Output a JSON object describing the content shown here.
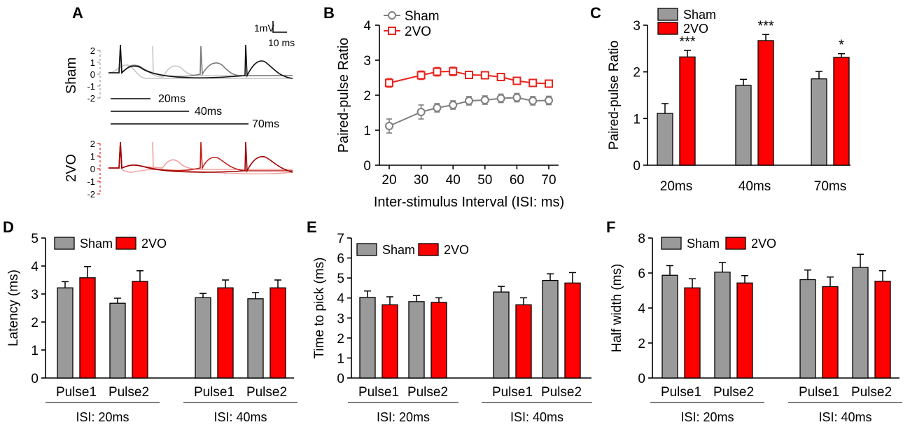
{
  "colors": {
    "sham": "#9a9a9a",
    "vo": "#ff0000",
    "line_sham": "#7f7f7f",
    "line_vo": "#e8231e",
    "trace_light": "#c6c6c6",
    "trace_mid": "#8a8a8a",
    "trace_dark": "#111111",
    "vo_light": "#f0a0a0",
    "vo_dark": "#a00000"
  },
  "panelA": {
    "label": "A",
    "sham_label": "Sham",
    "vo_label": "2VO",
    "scale_y": "1mV",
    "scale_x": "10 ms",
    "sham_ticks": [
      "2",
      "1",
      "0",
      "-1",
      "-2"
    ],
    "vo_ticks": [
      "2",
      "1",
      "0",
      "-1",
      "-2"
    ],
    "isi_labels": [
      "20ms",
      "40ms",
      "70ms"
    ]
  },
  "chart_data": [
    {
      "panel": "B",
      "type": "line",
      "title": "",
      "xlabel": "Inter-stimulus Interval (ISI: ms)",
      "ylabel": "Paired-pulse Ratio",
      "x": [
        20,
        30,
        35,
        40,
        45,
        50,
        55,
        60,
        65,
        70
      ],
      "xticks": [
        "20",
        "30",
        "40",
        "50",
        "60",
        "70"
      ],
      "xtick_values": [
        20,
        30,
        40,
        50,
        60,
        70
      ],
      "yticks": [
        "0",
        "1",
        "2",
        "3",
        "4"
      ],
      "xlim": [
        20,
        70
      ],
      "ylim": [
        0,
        4
      ],
      "legend": [
        "Sham",
        "2VO"
      ],
      "series": [
        {
          "name": "Sham",
          "values": [
            1.12,
            1.52,
            1.64,
            1.72,
            1.84,
            1.86,
            1.91,
            1.93,
            1.84,
            1.85
          ],
          "errors": [
            0.2,
            0.2,
            0.12,
            0.12,
            0.12,
            0.12,
            0.12,
            0.12,
            0.12,
            0.12
          ]
        },
        {
          "name": "2VO",
          "values": [
            2.35,
            2.57,
            2.67,
            2.68,
            2.58,
            2.57,
            2.52,
            2.41,
            2.35,
            2.33
          ],
          "errors": [
            0.12,
            0.12,
            0.12,
            0.12,
            0.08,
            0.08,
            0.08,
            0.08,
            0.08,
            0.06
          ]
        }
      ]
    },
    {
      "panel": "C",
      "type": "bar",
      "xlabel": "",
      "ylabel": "Paired-pulse Ratio",
      "categories": [
        "20ms",
        "40ms",
        "70ms"
      ],
      "yticks": [
        "0",
        "1",
        "2",
        "3"
      ],
      "ylim": [
        0,
        3
      ],
      "legend": [
        "Sham",
        "2VO"
      ],
      "series": [
        {
          "name": "Sham",
          "values": [
            1.11,
            1.71,
            1.85
          ],
          "errors": [
            0.21,
            0.13,
            0.16
          ]
        },
        {
          "name": "2VO",
          "values": [
            2.32,
            2.67,
            2.31
          ],
          "errors": [
            0.14,
            0.13,
            0.08
          ]
        }
      ],
      "annotations": [
        "***",
        "***",
        "*"
      ]
    },
    {
      "panel": "D",
      "type": "bar",
      "ylabel": "Latency (ms)",
      "groups": [
        "Pulse1",
        "Pulse2",
        "Pulse1",
        "Pulse2"
      ],
      "isi_labels": [
        "ISI: 20ms",
        "ISI: 40ms"
      ],
      "yticks": [
        "0",
        "1",
        "2",
        "3",
        "4",
        "5"
      ],
      "ylim": [
        0,
        5
      ],
      "legend": [
        "Sham",
        "2VO"
      ],
      "series": [
        {
          "name": "Sham",
          "values": [
            3.22,
            2.67,
            2.87,
            2.83
          ],
          "errors": [
            0.22,
            0.18,
            0.15,
            0.22
          ]
        },
        {
          "name": "2VO",
          "values": [
            3.58,
            3.45,
            3.22,
            3.22
          ],
          "errors": [
            0.4,
            0.38,
            0.28,
            0.28
          ]
        }
      ]
    },
    {
      "panel": "E",
      "type": "bar",
      "ylabel": "Time to pick (ms)",
      "groups": [
        "Pulse1",
        "Pulse2",
        "Pulse1",
        "Pulse2"
      ],
      "isi_labels": [
        "ISI: 20ms",
        "ISI: 40ms"
      ],
      "yticks": [
        "0",
        "1",
        "2",
        "3",
        "4",
        "5",
        "6",
        "7"
      ],
      "ylim": [
        0,
        7
      ],
      "legend": [
        "Sham",
        "2VO"
      ],
      "series": [
        {
          "name": "Sham",
          "values": [
            4.03,
            3.82,
            4.3,
            4.88
          ],
          "errors": [
            0.32,
            0.3,
            0.28,
            0.33
          ]
        },
        {
          "name": "2VO",
          "values": [
            3.66,
            3.78,
            3.66,
            4.75
          ],
          "errors": [
            0.4,
            0.23,
            0.35,
            0.52
          ]
        }
      ]
    },
    {
      "panel": "F",
      "type": "bar",
      "ylabel": "Half width (ms)",
      "groups": [
        "Pulse1",
        "Pulse2",
        "Pulse1",
        "Pulse2"
      ],
      "isi_labels": [
        "ISI: 20ms",
        "ISI: 40ms"
      ],
      "yticks": [
        "0",
        "2",
        "4",
        "6",
        "8"
      ],
      "ylim": [
        0,
        8
      ],
      "legend": [
        "Sham",
        "2VO"
      ],
      "series": [
        {
          "name": "Sham",
          "values": [
            5.87,
            6.05,
            5.62,
            6.32
          ],
          "errors": [
            0.55,
            0.55,
            0.55,
            0.75
          ]
        },
        {
          "name": "2VO",
          "values": [
            5.15,
            5.43,
            5.22,
            5.53
          ],
          "errors": [
            0.52,
            0.42,
            0.55,
            0.6
          ]
        }
      ]
    }
  ]
}
